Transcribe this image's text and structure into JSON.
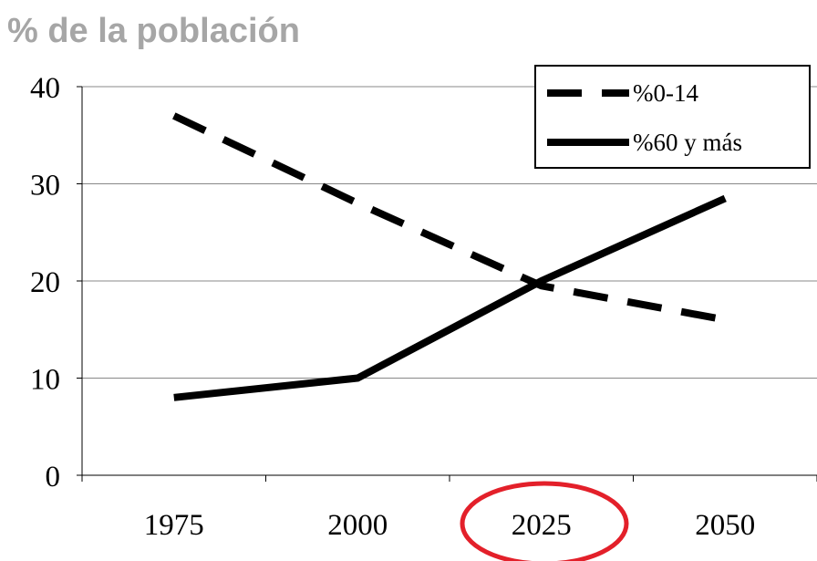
{
  "chart_data": {
    "type": "line",
    "title": "% de la población",
    "categories": [
      "1975",
      "2000",
      "2025",
      "2050"
    ],
    "series": [
      {
        "name": "%0-14",
        "color": "#000000",
        "style": "dashed",
        "values": [
          37,
          28,
          19.5,
          16
        ]
      },
      {
        "name": "%60 y más",
        "color": "#000000",
        "style": "solid",
        "values": [
          8,
          10,
          20,
          28.5
        ]
      }
    ],
    "ylim": [
      0,
      40
    ],
    "yticks": [
      0,
      10,
      20,
      30,
      40
    ],
    "grid": true,
    "legend": "top-right"
  }
}
